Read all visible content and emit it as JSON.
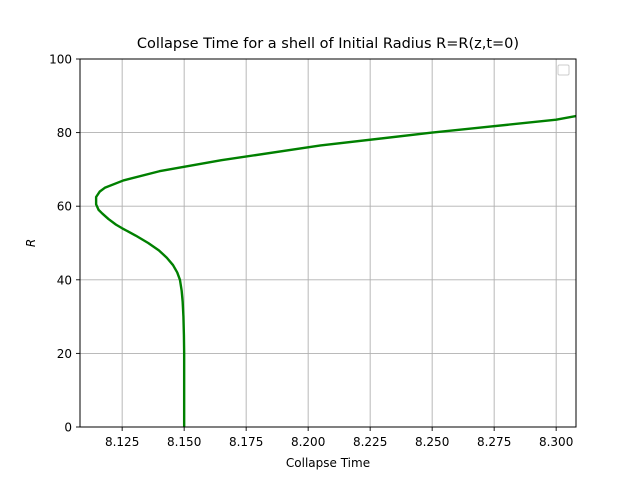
{
  "chart_data": {
    "type": "line",
    "title": "Collapse Time for a shell of Initial Radius R=R(z,t=0)",
    "xlabel": "Collapse Time",
    "ylabel": "R",
    "xlim": [
      8.108,
      8.308
    ],
    "ylim": [
      0,
      100
    ],
    "xticks": [
      8.125,
      8.15,
      8.175,
      8.2,
      8.225,
      8.25,
      8.275,
      8.3
    ],
    "xtick_labels": [
      "8.125",
      "8.150",
      "8.175",
      "8.200",
      "8.225",
      "8.250",
      "8.275",
      "8.300"
    ],
    "yticks": [
      0,
      20,
      40,
      60,
      80,
      100
    ],
    "ytick_labels": [
      "0",
      "20",
      "40",
      "60",
      "80",
      "100"
    ],
    "grid": true,
    "legend": {
      "placement": "upper-right",
      "entries": []
    },
    "series": [
      {
        "color": "#008000",
        "x": [
          8.15,
          8.15,
          8.1499,
          8.1497,
          8.1494,
          8.149,
          8.1483,
          8.1472,
          8.1455,
          8.143,
          8.1398,
          8.1355,
          8.1305,
          8.125,
          8.1225,
          8.1195,
          8.117,
          8.1155,
          8.1145,
          8.1145,
          8.116,
          8.118,
          8.1255,
          8.14,
          8.165,
          8.205,
          8.25,
          8.3,
          8.308
        ],
        "y": [
          0,
          20,
          25,
          30,
          34,
          37,
          40,
          42,
          44,
          46,
          48,
          50,
          52,
          54,
          55,
          56.5,
          58,
          59,
          60.5,
          62.5,
          64,
          65,
          67,
          69.5,
          72.5,
          76.5,
          80,
          83.5,
          84.5
        ]
      }
    ]
  }
}
